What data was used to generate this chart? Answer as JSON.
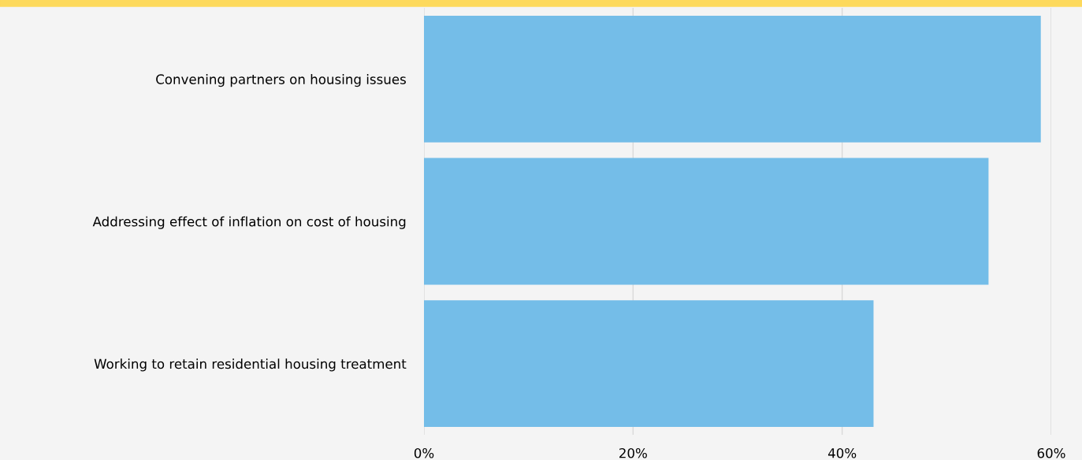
{
  "chart_data": {
    "type": "bar",
    "orientation": "horizontal",
    "categories": [
      "Convening partners on housing issues",
      "Addressing effect of inflation on cost of housing",
      "Working to retain residential housing treatment"
    ],
    "values": [
      59,
      54,
      43
    ],
    "color": "#74bde8",
    "xlim": [
      0,
      60
    ],
    "xticks": [
      {
        "value": 0,
        "label": "0%"
      },
      {
        "value": 20,
        "label": "20%"
      },
      {
        "value": 40,
        "label": "40%"
      },
      {
        "value": 60,
        "label": "60%"
      }
    ],
    "grid": "x",
    "legend": false
  }
}
